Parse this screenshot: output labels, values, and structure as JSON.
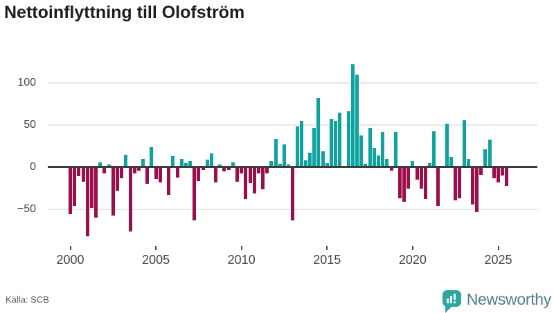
{
  "title": "Nettoinflyttning till Olofström",
  "footer": {
    "source": "Källa: SCB",
    "brand": "Newsworthy",
    "brand_icon": "newsworthy-speech-bubble-bar-chart-icon"
  },
  "colors": {
    "positive": "#0da39e",
    "negative": "#9c0d49",
    "zero_line": "#3d3d3d",
    "grid": "#e7e7e7",
    "axis_text": "#454545",
    "title_text": "#1d1d1b",
    "logo_icon": "#2ba8a2",
    "logo_text": "#4a7f8e"
  },
  "chart_data": {
    "type": "bar",
    "title": "Nettoinflyttning till Olofström",
    "frequency": "quarterly",
    "x_start": "2000-Q1",
    "x_end": "2025-Q3",
    "ylim": [
      -90,
      135
    ],
    "yticks": [
      100,
      50,
      0,
      -50
    ],
    "ytick_labels": [
      "100",
      "50",
      "0",
      "−50"
    ],
    "xticks": [
      "2000",
      "2005",
      "2010",
      "2015",
      "2020",
      "2025"
    ],
    "grid": true,
    "legend": false,
    "years": [
      {
        "year": 2000,
        "quarters": [
          -56,
          -46,
          -11,
          -17
        ]
      },
      {
        "year": 2001,
        "quarters": [
          -82,
          -48,
          -60,
          6
        ]
      },
      {
        "year": 2002,
        "quarters": [
          -7,
          3,
          -57,
          -28
        ]
      },
      {
        "year": 2003,
        "quarters": [
          -13,
          15,
          -76,
          -7
        ]
      },
      {
        "year": 2004,
        "quarters": [
          -4,
          10,
          -20,
          24
        ]
      },
      {
        "year": 2005,
        "quarters": [
          -14,
          -18,
          0,
          -33
        ]
      },
      {
        "year": 2006,
        "quarters": [
          13,
          -12,
          10,
          5
        ]
      },
      {
        "year": 2007,
        "quarters": [
          7,
          -63,
          -16,
          -3
        ]
      },
      {
        "year": 2008,
        "quarters": [
          9,
          16,
          -18,
          3
        ]
      },
      {
        "year": 2009,
        "quarters": [
          -5,
          -3,
          6,
          -17
        ]
      },
      {
        "year": 2010,
        "quarters": [
          -7,
          -38,
          -19,
          -31
        ]
      },
      {
        "year": 2011,
        "quarters": [
          -7,
          -26,
          -7,
          7
        ]
      },
      {
        "year": 2012,
        "quarters": [
          34,
          4,
          27,
          3
        ]
      },
      {
        "year": 2013,
        "quarters": [
          -63,
          48,
          55,
          8
        ]
      },
      {
        "year": 2014,
        "quarters": [
          17,
          47,
          82,
          19
        ]
      },
      {
        "year": 2015,
        "quarters": [
          5,
          57,
          55,
          65
        ]
      },
      {
        "year": 2016,
        "quarters": [
          0,
          66,
          122,
          110
        ]
      },
      {
        "year": 2017,
        "quarters": [
          38,
          4,
          47,
          23
        ]
      },
      {
        "year": 2018,
        "quarters": [
          14,
          42,
          10,
          -4
        ]
      },
      {
        "year": 2019,
        "quarters": [
          42,
          -37,
          -41,
          -25
        ]
      },
      {
        "year": 2020,
        "quarters": [
          7,
          -15,
          -25,
          -38
        ]
      },
      {
        "year": 2021,
        "quarters": [
          5,
          43,
          -46,
          0
        ]
      },
      {
        "year": 2022,
        "quarters": [
          52,
          12,
          -39,
          -37
        ]
      },
      {
        "year": 2023,
        "quarters": [
          56,
          10,
          -44,
          -53
        ]
      },
      {
        "year": 2024,
        "quarters": [
          -9,
          21,
          33,
          -13
        ]
      },
      {
        "year": 2025,
        "quarters": [
          -18,
          -10,
          -22
        ]
      }
    ]
  }
}
